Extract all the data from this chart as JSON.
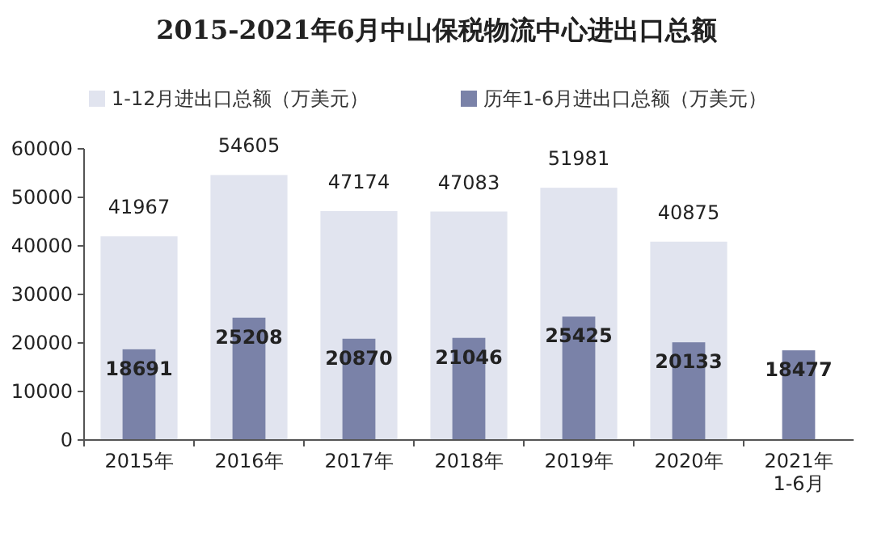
{
  "chart_data": {
    "type": "bar",
    "title": "2015-2021年6月中山保税物流中心进出口总额",
    "categories": [
      "2015年",
      "2016年",
      "2017年",
      "2018年",
      "2019年",
      "2020年",
      "2021年\n1-6月"
    ],
    "series": [
      {
        "name": "1-12月进出口总额（万美元）",
        "color": "#e1e4ef",
        "values": [
          41967,
          54605,
          47174,
          47083,
          51981,
          40875,
          null
        ]
      },
      {
        "name": "历年1-6月进出口总额（万美元）",
        "color": "#7a82a8",
        "values": [
          18691,
          25208,
          20870,
          21046,
          25425,
          20133,
          18477
        ]
      }
    ],
    "ylim": [
      0,
      60000
    ],
    "yticks": [
      0,
      10000,
      20000,
      30000,
      40000,
      50000,
      60000
    ],
    "data_labels": true,
    "legend": "top",
    "grid": false
  }
}
